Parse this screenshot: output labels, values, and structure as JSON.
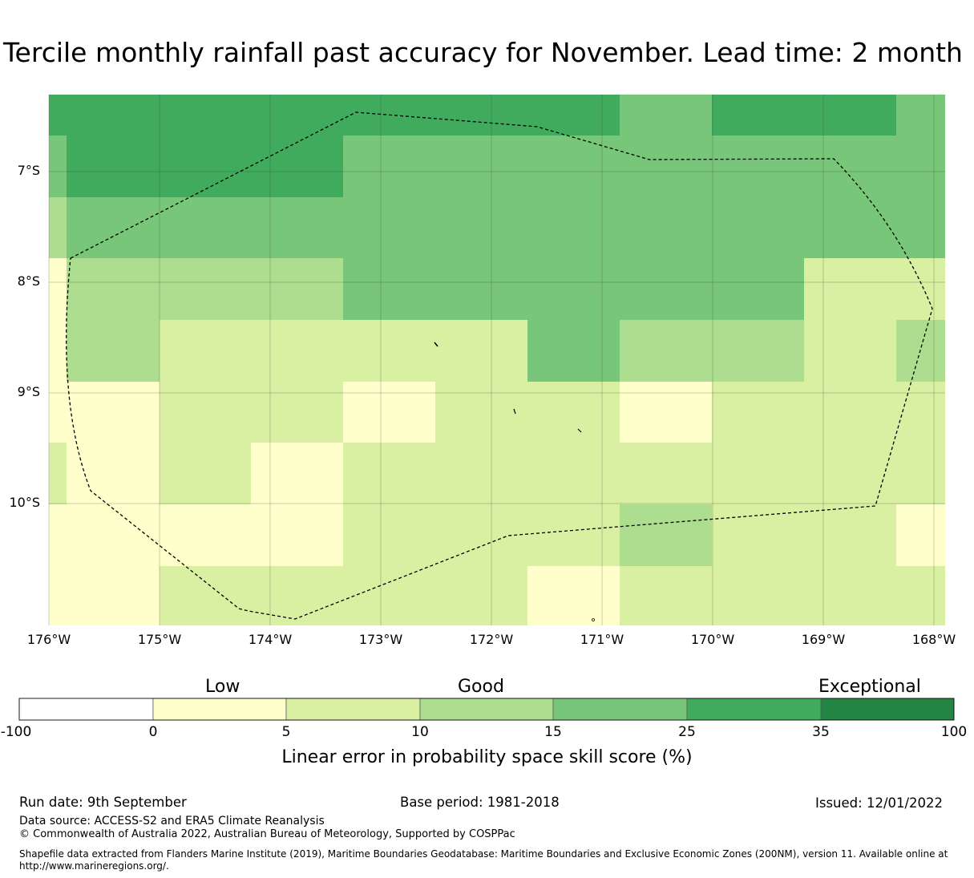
{
  "title": "Tercile monthly rainfall past accuracy for November. Lead time: 2 month",
  "map": {
    "lat_labels": [
      "7°S",
      "8°S",
      "9°S",
      "10°S"
    ],
    "lon_labels": [
      "176°W",
      "175°W",
      "174°W",
      "173°W",
      "172°W",
      "171°W",
      "170°W",
      "169°W",
      "168°W"
    ],
    "grid_cells_class_index_by_row": [
      [
        4,
        4,
        4,
        4,
        4,
        4,
        4,
        4,
        4,
        4,
        4,
        4,
        4,
        4,
        4,
        4,
        4,
        4,
        4,
        4,
        4,
        4,
        4,
        4,
        4,
        4,
        4,
        4,
        4,
        4,
        4,
        4,
        4,
        4,
        4,
        4,
        4,
        4,
        4,
        4,
        4,
        4,
        4,
        4,
        4,
        4,
        4,
        4,
        4,
        4,
        4,
        4,
        4,
        4,
        4,
        4,
        4,
        4,
        4,
        4,
        4,
        4,
        4,
        4,
        4,
        4,
        4,
        4,
        4,
        4,
        4,
        4,
        4,
        4,
        4,
        4,
        4,
        4,
        4,
        4,
        4,
        4,
        4,
        4,
        4,
        4,
        4,
        4,
        4,
        4,
        4,
        4,
        4,
        4,
        4,
        4,
        4,
        4,
        4,
        4,
        4,
        4,
        4,
        4,
        4,
        4,
        4,
        4,
        4,
        4,
        4,
        4,
        4,
        4,
        4,
        4,
        4,
        4,
        4,
        4,
        4,
        4
      ]
    ],
    "boundary": "dashed EEZ outline",
    "colors": {
      "bin_0_5": "#ffffcc",
      "bin_5_10": "#d9f0a3",
      "bin_10_15": "#addd8e",
      "bin_15_25": "#78c679",
      "bin_25_35": "#41ab5d",
      "bin_35_100": "#238443",
      "bin_neg": "#ffffff",
      "grid_line": "#333333"
    }
  },
  "colorbar": {
    "categories": [
      "Low",
      "Good",
      "Exceptional"
    ],
    "ticks": [
      "-100",
      "0",
      "5",
      "10",
      "15",
      "25",
      "35",
      "100"
    ],
    "bin_colors": [
      "#ffffff",
      "#ffffcc",
      "#d9f0a3",
      "#addd8e",
      "#78c679",
      "#41ab5d",
      "#238443"
    ],
    "label": "Linear error in probability space skill score (%)"
  },
  "footer": {
    "run_date": "Run date: 9th September",
    "base_period": "Base period: 1981-2018",
    "issued": "Issued: 12/01/2022",
    "data_source": "Data source: ACCESS-S2 and ERA5 Climate Reanalysis",
    "copyright": "© Commonwealth of Australia 2022, Australian Bureau of Meteorology, Supported by COSPPac",
    "shapefile_line1": "Shapefile data extracted from Flanders Marine Institute (2019), Maritime Boundaries Geodatabase: Maritime Boundaries and Exclusive Economic Zones (200NM), version 11. Available online at",
    "shapefile_line2": "http://www.marineregions.org/."
  }
}
